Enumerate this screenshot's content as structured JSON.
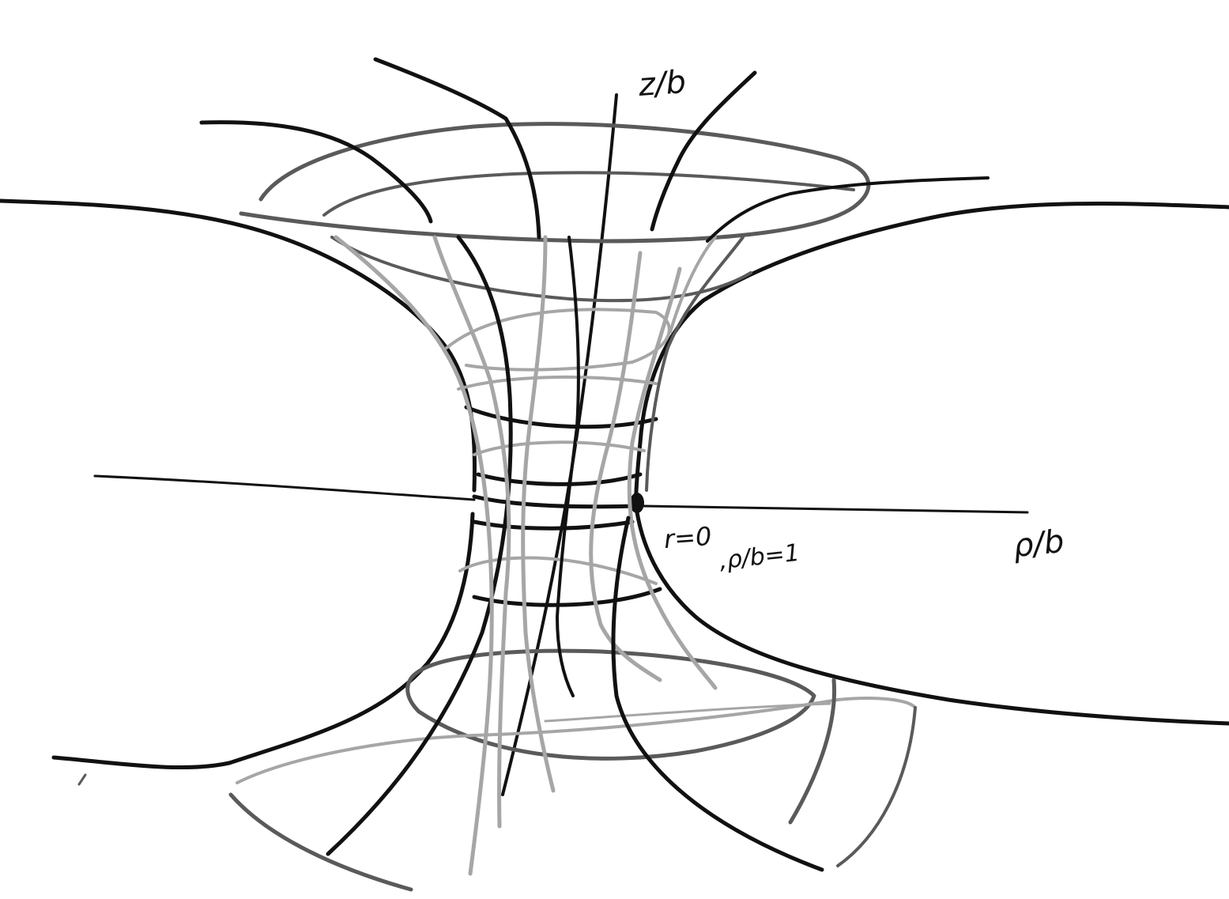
{
  "labels": {
    "z_axis": "z/b",
    "rho_axis": "ρ/b",
    "r_zero": "r=0",
    "rho_ratio": ",ρ/b=1"
  },
  "colors": {
    "background": "#ffffff",
    "ink_dark": "#111111",
    "ink_mid": "#5a5a5a",
    "ink_light": "#a6a6a6"
  }
}
